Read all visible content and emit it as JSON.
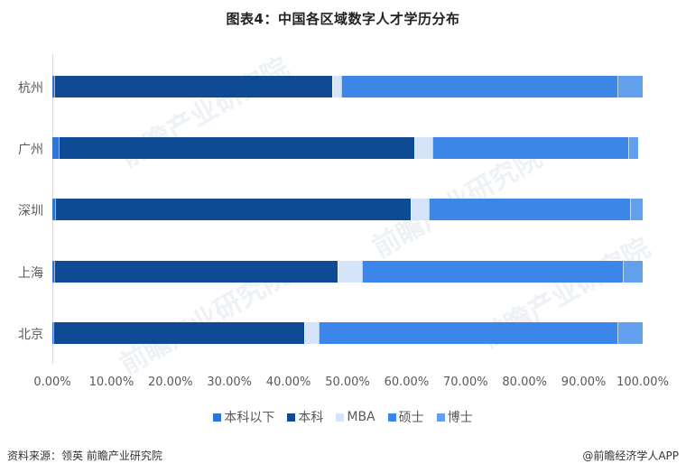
{
  "title": "图表4：中国各区域数字人才学历分布",
  "chart_data": {
    "type": "bar",
    "orientation": "horizontal",
    "stacked": true,
    "title": "图表4：中国各区域数字人才学历分布",
    "xlabel": "",
    "ylabel": "",
    "xlim": [
      0,
      100
    ],
    "x_ticks": [
      "0.00%",
      "10.00%",
      "20.00%",
      "30.00%",
      "40.00%",
      "50.00%",
      "60.00%",
      "70.00%",
      "80.00%",
      "90.00%",
      "100.00%"
    ],
    "grid": false,
    "legend_position": "bottom",
    "categories": [
      "杭州",
      "广州",
      "深圳",
      "上海",
      "北京"
    ],
    "series": [
      {
        "name": "本科以下",
        "color": "#2e75d6",
        "values": [
          0.3,
          1.1,
          0.5,
          0.3,
          0.2
        ]
      },
      {
        "name": "本科",
        "color": "#0f4a94",
        "values": [
          47.1,
          60.2,
          60.2,
          48.0,
          42.5
        ]
      },
      {
        "name": "MBA",
        "color": "#d5e4f8",
        "values": [
          1.5,
          3.1,
          3.1,
          4.1,
          2.4
        ]
      },
      {
        "name": "硕士",
        "color": "#3b86e6",
        "values": [
          46.8,
          33.2,
          34.1,
          44.2,
          50.6
        ]
      },
      {
        "name": "博士",
        "color": "#62a0ee",
        "values": [
          4.3,
          1.7,
          2.1,
          3.4,
          4.3
        ]
      }
    ]
  },
  "legend": [
    "本科以下",
    "本科",
    "MBA",
    "硕士",
    "博士"
  ],
  "footer": {
    "source": "资料来源：领英 前瞻产业研究院",
    "credit": "@前瞻经济学人APP"
  },
  "watermark_text": "前瞻产业研究院"
}
